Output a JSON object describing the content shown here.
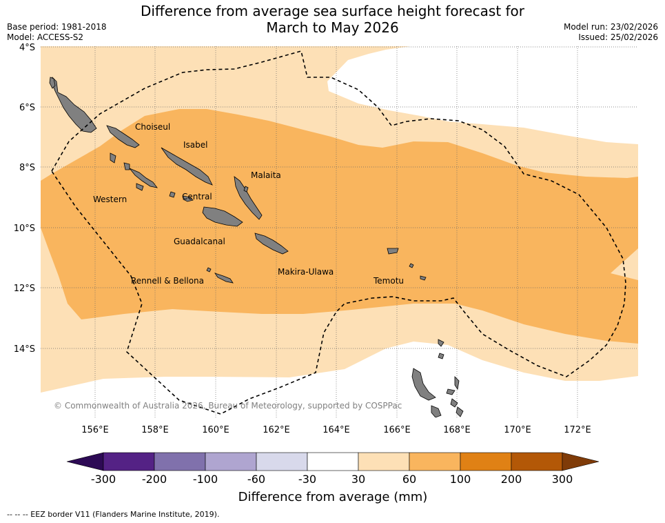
{
  "header": {
    "title_line1": "Difference from average sea surface height forecast for",
    "title_line2": "March to May 2026",
    "base_period": "Base period: 1981-2018",
    "model": "Model: ACCESS-S2",
    "model_run": "Model run: 23/02/2026",
    "issued": "Issued: 25/02/2026"
  },
  "map": {
    "lat_labels": [
      "4°S",
      "6°S",
      "8°S",
      "10°S",
      "12°S",
      "14°S"
    ],
    "lon_labels": [
      "156°E",
      "158°E",
      "160°E",
      "162°E",
      "164°E",
      "166°E",
      "168°E",
      "170°E",
      "172°E"
    ],
    "provinces": [
      "Choiseul",
      "Isabel",
      "Malaita",
      "Western",
      "Central",
      "Guadalcanal",
      "Makira-Ulawa",
      "Rennell & Bellona",
      "Temotu"
    ],
    "copyright": "© Commonwealth of Australia 2026, Bureau of Meteorology, supported by COSPPac",
    "colors": {
      "band_30_60": "#fde0b6",
      "band_60_100": "#f9b55e",
      "land": "#808080",
      "eez": "#000000"
    }
  },
  "colorbar": {
    "ticks": [
      "-300",
      "-200",
      "-100",
      "-60",
      "-30",
      "30",
      "60",
      "100",
      "200",
      "300"
    ],
    "colors": [
      "#2d0a55",
      "#542285",
      "#8071ac",
      "#afa5d0",
      "#d8d9eb",
      "#ffffff",
      "#fde0b6",
      "#f9b55e",
      "#e08115",
      "#b35807",
      "#7f3b08"
    ],
    "label": "Difference from average (mm)"
  },
  "legend": {
    "eez_note": "-- -- -- EEZ border V11 (Flanders Marine Institute, 2019)."
  }
}
